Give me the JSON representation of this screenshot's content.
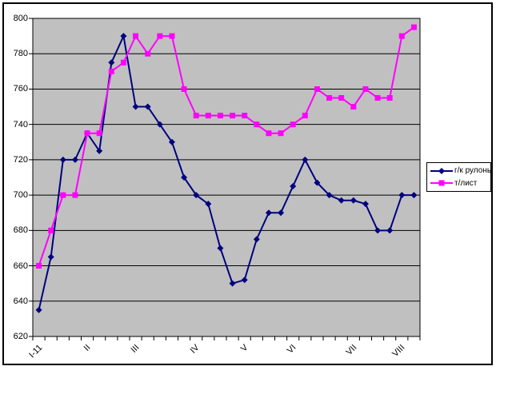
{
  "chart_data": {
    "type": "line",
    "title": "",
    "xlabel": "",
    "ylabel": "",
    "categories": [
      "I-11",
      "",
      "",
      "",
      "II",
      "",
      "",
      "",
      "III",
      "",
      "",
      "",
      "",
      "IV",
      "",
      "",
      "",
      "V",
      "",
      "",
      "",
      "VI",
      "",
      "",
      "",
      "",
      "VII",
      "",
      "",
      "",
      "VIII",
      ""
    ],
    "series": [
      {
        "name": "г/к рулоны",
        "color": "#000080",
        "marker": "diamond",
        "values": [
          635,
          665,
          720,
          720,
          735,
          725,
          775,
          790,
          750,
          750,
          740,
          730,
          710,
          700,
          695,
          670,
          650,
          652,
          675,
          690,
          690,
          705,
          720,
          707,
          700,
          697,
          697,
          695,
          680,
          680,
          700,
          700
        ]
      },
      {
        "name": "т/лист",
        "color": "#FF00FF",
        "marker": "square",
        "values": [
          660,
          680,
          700,
          700,
          735,
          735,
          770,
          775,
          790,
          780,
          790,
          790,
          760,
          745,
          745,
          745,
          745,
          745,
          740,
          735,
          735,
          740,
          745,
          760,
          755,
          755,
          750,
          760,
          755,
          755,
          790,
          795
        ]
      }
    ],
    "ylim": [
      620,
      800
    ],
    "ystep": 20,
    "yticks": [
      620,
      640,
      660,
      680,
      700,
      720,
      740,
      760,
      780,
      800
    ],
    "grid": true,
    "legend_position": "right",
    "plot_bg": "#C0C0C0",
    "gridline_color": "#000000",
    "frame_color": "#000000"
  }
}
